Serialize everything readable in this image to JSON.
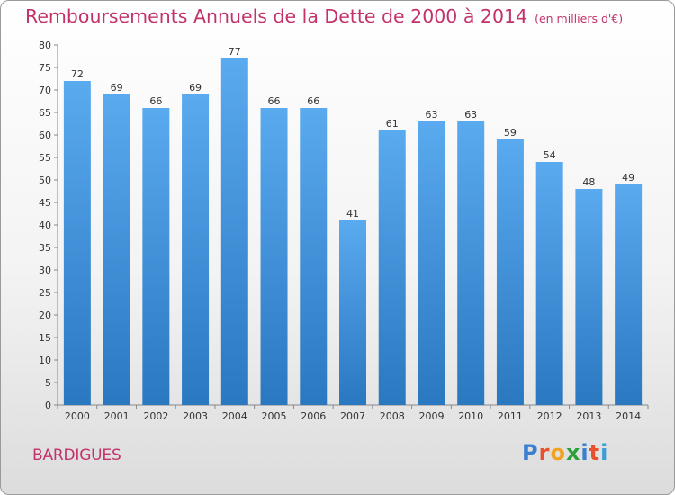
{
  "title": "Remboursements Annuels de la Dette de 2000 à 2014",
  "unit": "(en milliers d'€)",
  "commune": "BARDIGUES",
  "logo": {
    "letters": [
      "P",
      "r",
      "o",
      "x",
      "i",
      "t",
      "i"
    ],
    "colors": [
      "#3a7fd0",
      "#e8502e",
      "#f2a21c",
      "#2a9f3a",
      "#3a7fd0",
      "#e8502e",
      "#3a9fd8"
    ]
  },
  "colors": {
    "bar": "#4a96dc",
    "title": "#c2326b"
  },
  "chart_data": {
    "type": "bar",
    "title": "Remboursements Annuels de la Dette de 2000 à 2014",
    "subtitle": "(en milliers d'€)",
    "categories": [
      "2000",
      "2001",
      "2002",
      "2003",
      "2004",
      "2005",
      "2006",
      "2007",
      "2008",
      "2009",
      "2010",
      "2011",
      "2012",
      "2013",
      "2014"
    ],
    "values": [
      72,
      69,
      66,
      69,
      77,
      66,
      66,
      41,
      61,
      63,
      63,
      59,
      54,
      48,
      49
    ],
    "ylim": [
      0,
      80
    ],
    "yticks": [
      0,
      5,
      10,
      15,
      20,
      25,
      30,
      35,
      40,
      45,
      50,
      55,
      60,
      65,
      70,
      75,
      80
    ],
    "grid": false,
    "data_labels": true
  }
}
